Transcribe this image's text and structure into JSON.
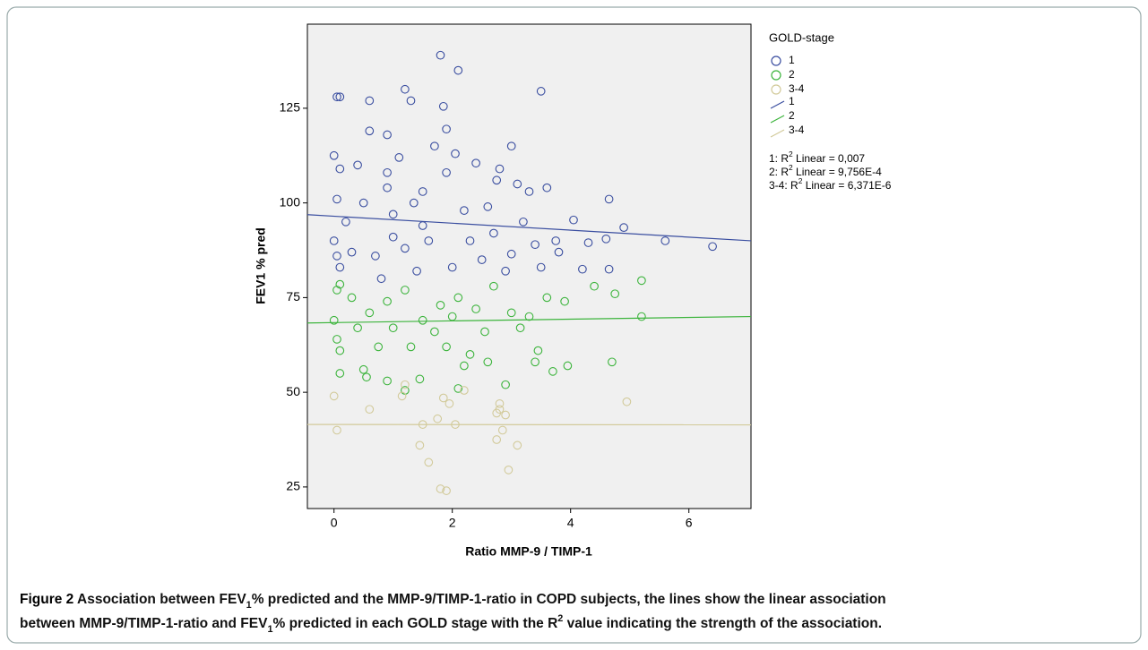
{
  "chart_data": {
    "type": "scatter",
    "x_label": "Ratio MMP-9 / TIMP-1",
    "y_label": "FEV1 % pred",
    "xlim": [
      -0.45,
      7.05
    ],
    "ylim": [
      19.3,
      147.2
    ],
    "xticks": [
      0,
      2,
      4,
      6
    ],
    "yticks": [
      25,
      50,
      75,
      100,
      125
    ],
    "legend_title": "GOLD-stage",
    "series": [
      {
        "name": "1",
        "color": "#3a4ea0",
        "x": [
          1.8,
          2.1,
          1.2,
          3.5,
          0.05,
          0.1,
          0.6,
          1.3,
          1.85,
          0.6,
          1.9,
          0.9,
          3.0,
          2.05,
          0.0,
          1.7,
          0.4,
          0.1,
          2.4,
          2.8,
          2.75,
          3.1,
          3.6,
          3.3,
          1.5,
          0.9,
          4.65,
          4.05,
          4.9,
          5.6,
          6.4,
          4.3,
          4.6,
          4.2,
          4.65,
          3.8,
          3.4,
          3.5,
          3.0,
          2.5,
          2.0,
          1.4,
          0.8,
          0.1,
          0.0,
          0.2,
          0.5,
          1.0,
          1.5,
          2.2,
          2.7,
          3.2,
          1.2,
          0.7,
          0.3,
          1.6,
          2.3,
          0.05,
          1.9,
          1.1,
          2.6,
          3.75,
          0.05,
          1.0,
          2.9,
          0.9,
          1.35
        ],
        "values": [
          139,
          135,
          130,
          129.5,
          128,
          128,
          127,
          127,
          125.5,
          119,
          119.5,
          118,
          115,
          113,
          112.5,
          115,
          110,
          109,
          110.5,
          109,
          106,
          105,
          104,
          103,
          103,
          104,
          101,
          95.5,
          93.5,
          90,
          88.5,
          89.5,
          90.5,
          82.5,
          82.5,
          87,
          89,
          83,
          86.5,
          85,
          83,
          82,
          80,
          83,
          90,
          95,
          100,
          97,
          94,
          98,
          92,
          95,
          88,
          86,
          87,
          90,
          90,
          101,
          108,
          112,
          99,
          90,
          86,
          91,
          82,
          108,
          100
        ]
      },
      {
        "name": "2",
        "color": "#3cb43c",
        "x": [
          0.05,
          0.1,
          0.3,
          0.6,
          0.9,
          1.2,
          1.5,
          1.8,
          2.1,
          2.4,
          2.7,
          3.0,
          3.3,
          3.6,
          3.9,
          4.4,
          4.75,
          5.2,
          5.2,
          4.7,
          3.95,
          3.7,
          3.4,
          3.45,
          2.9,
          2.6,
          2.2,
          2.1,
          1.45,
          1.2,
          0.9,
          0.55,
          0.5,
          0.1,
          0.0,
          0.05,
          0.1,
          0.75,
          1.3,
          1.9,
          2.3,
          2.55,
          1.7,
          1.0,
          0.4,
          3.15,
          2.0
        ],
        "values": [
          77,
          78.5,
          75,
          71,
          74,
          77,
          69,
          73,
          75,
          72,
          78,
          71,
          70,
          75,
          74,
          78,
          76,
          79.5,
          70,
          58,
          57,
          55.5,
          58,
          61,
          52,
          58,
          57,
          51,
          53.5,
          50.5,
          53,
          54,
          56,
          55,
          69,
          64,
          61,
          62,
          62,
          62,
          60,
          66,
          66,
          67,
          67,
          67,
          70
        ]
      },
      {
        "name": "3-4",
        "color": "#d2ca9a",
        "x": [
          0.0,
          0.05,
          0.6,
          1.15,
          1.45,
          1.5,
          1.6,
          1.75,
          1.8,
          1.9,
          1.85,
          1.95,
          2.05,
          2.2,
          2.75,
          2.8,
          2.75,
          2.85,
          2.9,
          2.95,
          3.1,
          4.95,
          1.2,
          2.8
        ],
        "values": [
          49,
          40,
          45.5,
          49,
          36,
          41.5,
          31.5,
          43,
          24.5,
          24,
          48.5,
          47,
          41.5,
          50.5,
          44.5,
          47,
          37.5,
          40,
          44,
          29.5,
          36,
          47.5,
          52,
          45.5
        ]
      }
    ],
    "fit_lines": [
      {
        "name": "1",
        "color": "#3a4ea0",
        "x": [
          -0.45,
          7.05
        ],
        "values": [
          96.9,
          90.0
        ]
      },
      {
        "name": "2",
        "color": "#3cb43c",
        "x": [
          -0.45,
          7.05
        ],
        "values": [
          68.3,
          70.0
        ]
      },
      {
        "name": "3-4",
        "color": "#d2ca9a",
        "x": [
          -0.45,
          7.05
        ],
        "values": [
          41.5,
          41.4
        ]
      }
    ],
    "r2_notes": [
      [
        {
          "text": "1: R"
        },
        {
          "text": "2",
          "sup": true
        },
        {
          "text": " Linear = 0,007"
        }
      ],
      [
        {
          "text": "2: R"
        },
        {
          "text": "2",
          "sup": true
        },
        {
          "text": " Linear = 9,756E-4"
        }
      ],
      [
        {
          "text": "3-4: R"
        },
        {
          "text": "2",
          "sup": true
        },
        {
          "text": " Linear = 6,371E-6"
        }
      ]
    ],
    "caption": [
      [
        {
          "text": "Figure 2",
          "strong": true
        },
        {
          "text": " Association between FEV"
        },
        {
          "text": "1",
          "sub": true
        },
        {
          "text": "% predicted and the MMP-9/TIMP-1-ratio in COPD subjects, the lines show the linear association"
        }
      ],
      [
        {
          "text": "between MMP-9/TIMP-1-ratio and FEV"
        },
        {
          "text": "1",
          "sub": true
        },
        {
          "text": "% predicted in each GOLD stage with the R"
        },
        {
          "text": "2",
          "sup": true
        },
        {
          "text": " value indicating the strength of the association."
        }
      ]
    ]
  }
}
